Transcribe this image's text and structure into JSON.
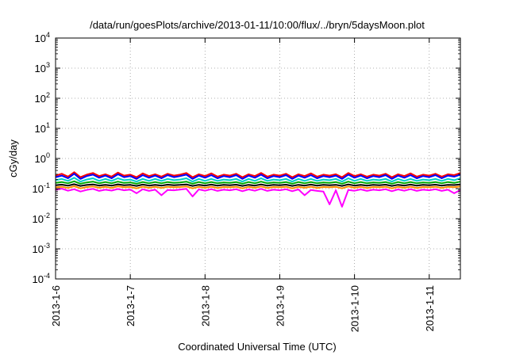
{
  "chart_data": {
    "type": "line",
    "title": "/data/run/goesPlots/archive/2013-01-11/10:00/flux/../bryn/5daysMoon.plot",
    "xlabel": "Coordinated Universal Time (UTC)",
    "ylabel": "cGy/day",
    "yscale": "log",
    "ylim": [
      0.0001,
      10000
    ],
    "ytick_labels": [
      {
        "base": "10",
        "exp": "-4"
      },
      {
        "base": "10",
        "exp": "-3"
      },
      {
        "base": "10",
        "exp": "-2"
      },
      {
        "base": "10",
        "exp": "-1"
      },
      {
        "base": "10",
        "exp": "0"
      },
      {
        "base": "10",
        "exp": "1"
      },
      {
        "base": "10",
        "exp": "2"
      },
      {
        "base": "10",
        "exp": "3"
      },
      {
        "base": "10",
        "exp": "4"
      }
    ],
    "xlim": [
      "2013-01-06T00:00",
      "2013-01-11T10:00"
    ],
    "xtick_labels": [
      "2013-1-6",
      "2013-1-7",
      "2013-1-8",
      "2013-1-9",
      "2013-1-10",
      "2013-1-11"
    ],
    "grid": true,
    "x_hours": [
      0,
      2,
      4,
      6,
      8,
      10,
      12,
      14,
      16,
      18,
      20,
      22,
      24,
      26,
      28,
      30,
      32,
      34,
      36,
      38,
      40,
      42,
      44,
      46,
      48,
      50,
      52,
      54,
      56,
      58,
      60,
      62,
      64,
      66,
      68,
      70,
      72,
      74,
      76,
      78,
      80,
      82,
      84,
      86,
      88,
      90,
      92,
      94,
      96,
      98,
      100,
      102,
      104,
      106,
      108,
      110,
      112,
      114,
      116,
      118,
      120,
      122,
      124,
      126,
      128,
      130
    ],
    "series": [
      {
        "color": "#ff0000",
        "values": [
          0.27,
          0.31,
          0.25,
          0.35,
          0.24,
          0.29,
          0.33,
          0.26,
          0.3,
          0.25,
          0.34,
          0.27,
          0.29,
          0.24,
          0.32,
          0.26,
          0.3,
          0.25,
          0.31,
          0.27,
          0.29,
          0.33,
          0.24,
          0.3,
          0.26,
          0.32,
          0.25,
          0.29,
          0.27,
          0.31,
          0.24,
          0.3,
          0.26,
          0.33,
          0.25,
          0.29,
          0.27,
          0.31,
          0.24,
          0.3,
          0.26,
          0.32,
          0.25,
          0.29,
          0.27,
          0.3,
          0.24,
          0.33,
          0.26,
          0.3,
          0.25,
          0.29,
          0.27,
          0.31,
          0.24,
          0.3,
          0.26,
          0.32,
          0.25,
          0.29,
          0.27,
          0.31,
          0.25,
          0.3,
          0.28,
          0.33
        ]
      },
      {
        "color": "#0000ff",
        "values": [
          0.24,
          0.27,
          0.22,
          0.31,
          0.21,
          0.26,
          0.29,
          0.23,
          0.27,
          0.22,
          0.3,
          0.24,
          0.26,
          0.21,
          0.28,
          0.23,
          0.27,
          0.22,
          0.28,
          0.24,
          0.26,
          0.29,
          0.21,
          0.27,
          0.23,
          0.28,
          0.22,
          0.26,
          0.24,
          0.28,
          0.21,
          0.27,
          0.23,
          0.29,
          0.22,
          0.26,
          0.24,
          0.28,
          0.21,
          0.27,
          0.23,
          0.28,
          0.22,
          0.26,
          0.24,
          0.27,
          0.21,
          0.29,
          0.23,
          0.27,
          0.22,
          0.26,
          0.24,
          0.28,
          0.21,
          0.27,
          0.23,
          0.28,
          0.22,
          0.26,
          0.24,
          0.28,
          0.22,
          0.27,
          0.25,
          0.29
        ]
      },
      {
        "color": "#00cccc",
        "values": [
          0.19,
          0.21,
          0.18,
          0.23,
          0.17,
          0.2,
          0.22,
          0.18,
          0.21,
          0.18,
          0.22,
          0.19,
          0.2,
          0.17,
          0.21,
          0.18,
          0.21,
          0.18,
          0.21,
          0.19,
          0.2,
          0.22,
          0.17,
          0.21,
          0.18,
          0.21,
          0.18,
          0.2,
          0.19,
          0.21,
          0.17,
          0.21,
          0.18,
          0.22,
          0.18,
          0.2,
          0.19,
          0.21,
          0.17,
          0.21,
          0.18,
          0.21,
          0.18,
          0.2,
          0.19,
          0.21,
          0.17,
          0.22,
          0.18,
          0.21,
          0.18,
          0.2,
          0.19,
          0.21,
          0.17,
          0.21,
          0.18,
          0.21,
          0.18,
          0.2,
          0.19,
          0.21,
          0.18,
          0.21,
          0.19,
          0.22
        ]
      },
      {
        "color": "#00aa00",
        "values": [
          0.155,
          0.165,
          0.15,
          0.175,
          0.145,
          0.16,
          0.17,
          0.15,
          0.165,
          0.15,
          0.17,
          0.155,
          0.16,
          0.145,
          0.165,
          0.15,
          0.165,
          0.15,
          0.165,
          0.155,
          0.16,
          0.17,
          0.145,
          0.165,
          0.15,
          0.165,
          0.15,
          0.16,
          0.155,
          0.165,
          0.145,
          0.165,
          0.15,
          0.17,
          0.15,
          0.16,
          0.155,
          0.165,
          0.145,
          0.165,
          0.15,
          0.165,
          0.15,
          0.16,
          0.155,
          0.165,
          0.145,
          0.17,
          0.15,
          0.165,
          0.15,
          0.16,
          0.155,
          0.165,
          0.145,
          0.165,
          0.15,
          0.165,
          0.15,
          0.16,
          0.155,
          0.165,
          0.15,
          0.165,
          0.155,
          0.17
        ]
      },
      {
        "color": "#000000",
        "values": [
          0.13,
          0.135,
          0.125,
          0.14,
          0.122,
          0.132,
          0.138,
          0.126,
          0.134,
          0.125,
          0.139,
          0.13,
          0.133,
          0.122,
          0.136,
          0.126,
          0.134,
          0.125,
          0.135,
          0.13,
          0.133,
          0.138,
          0.122,
          0.134,
          0.126,
          0.136,
          0.125,
          0.133,
          0.13,
          0.135,
          0.122,
          0.134,
          0.126,
          0.138,
          0.125,
          0.133,
          0.13,
          0.135,
          0.122,
          0.134,
          0.126,
          0.136,
          0.125,
          0.133,
          0.13,
          0.134,
          0.122,
          0.138,
          0.126,
          0.134,
          0.125,
          0.133,
          0.13,
          0.135,
          0.122,
          0.134,
          0.126,
          0.136,
          0.125,
          0.133,
          0.13,
          0.135,
          0.125,
          0.134,
          0.131,
          0.138
        ]
      },
      {
        "color": "#ff8c00",
        "values": [
          0.11,
          0.115,
          0.105,
          0.12,
          0.102,
          0.112,
          0.118,
          0.106,
          0.114,
          0.105,
          0.119,
          0.11,
          0.113,
          0.102,
          0.116,
          0.106,
          0.114,
          0.105,
          0.115,
          0.11,
          0.113,
          0.118,
          0.102,
          0.114,
          0.106,
          0.116,
          0.105,
          0.113,
          0.11,
          0.115,
          0.102,
          0.114,
          0.106,
          0.118,
          0.105,
          0.113,
          0.11,
          0.115,
          0.102,
          0.114,
          0.106,
          0.116,
          0.105,
          0.113,
          0.11,
          0.114,
          0.102,
          0.118,
          0.106,
          0.114,
          0.105,
          0.113,
          0.11,
          0.115,
          0.102,
          0.114,
          0.106,
          0.116,
          0.105,
          0.113,
          0.11,
          0.115,
          0.105,
          0.114,
          0.111,
          0.118
        ]
      },
      {
        "color": "#ff00ff",
        "values": [
          0.09,
          0.1,
          0.085,
          0.095,
          0.08,
          0.09,
          0.098,
          0.084,
          0.092,
          0.086,
          0.097,
          0.088,
          0.093,
          0.07,
          0.095,
          0.084,
          0.092,
          0.06,
          0.09,
          0.088,
          0.093,
          0.098,
          0.055,
          0.094,
          0.085,
          0.096,
          0.084,
          0.092,
          0.088,
          0.095,
          0.082,
          0.094,
          0.085,
          0.098,
          0.084,
          0.092,
          0.088,
          0.095,
          0.082,
          0.094,
          0.06,
          0.09,
          0.084,
          0.08,
          0.03,
          0.088,
          0.025,
          0.09,
          0.085,
          0.094,
          0.084,
          0.092,
          0.088,
          0.095,
          0.082,
          0.094,
          0.085,
          0.096,
          0.084,
          0.092,
          0.088,
          0.095,
          0.084,
          0.092,
          0.07,
          0.09
        ]
      }
    ]
  }
}
